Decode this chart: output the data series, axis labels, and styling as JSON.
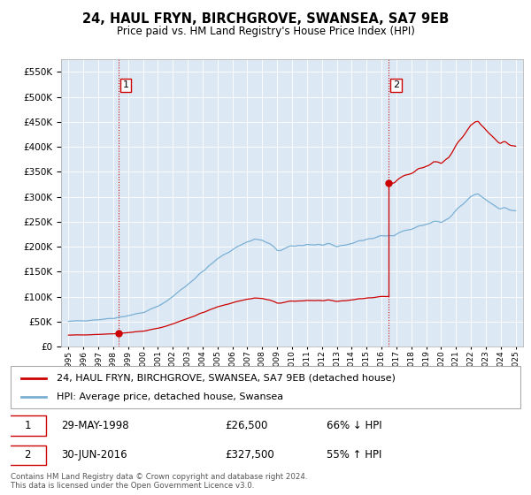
{
  "title": "24, HAUL FRYN, BIRCHGROVE, SWANSEA, SA7 9EB",
  "subtitle": "Price paid vs. HM Land Registry's House Price Index (HPI)",
  "bg_color": "#dce9f5",
  "red_line_color": "#cc0000",
  "blue_line_color": "#7aafd4",
  "dashed_line_color": "#cc0000",
  "sale1_year": 1998.38,
  "sale1_price": 26500,
  "sale2_year": 2016.5,
  "sale2_price": 327500,
  "legend_label_red": "24, HAUL FRYN, BIRCHGROVE, SWANSEA, SA7 9EB (detached house)",
  "legend_label_blue": "HPI: Average price, detached house, Swansea",
  "footer": "Contains HM Land Registry data © Crown copyright and database right 2024.\nThis data is licensed under the Open Government Licence v3.0.",
  "ylim": [
    0,
    575000
  ],
  "xlim_start": 1994.5,
  "xlim_end": 2025.5
}
